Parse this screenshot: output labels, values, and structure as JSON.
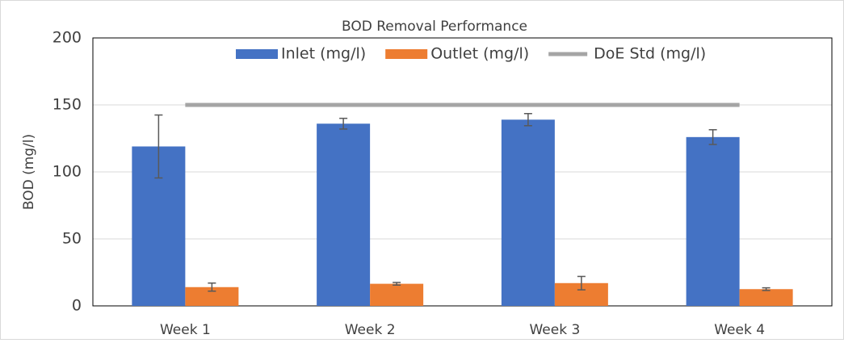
{
  "chart_data": {
    "type": "bar",
    "title": "BOD Removal Performance",
    "ylabel": "BOD (mg/l)",
    "categories": [
      "Week 1",
      "Week 2",
      "Week 3",
      "Week 4"
    ],
    "series": [
      {
        "name": "Inlet (mg/l)",
        "type": "bar",
        "color": "#4472c4",
        "values": [
          119,
          136,
          139,
          126
        ],
        "errors": [
          23.5,
          4,
          4.5,
          5.5
        ]
      },
      {
        "name": "Outlet (mg/l)",
        "type": "bar",
        "color": "#ed7d31",
        "values": [
          14,
          16.5,
          17,
          12.5
        ],
        "errors": [
          3,
          1,
          5,
          1
        ]
      },
      {
        "name": "DoE Std (mg/l)",
        "type": "line",
        "color": "#a5a5a5",
        "values": [
          150,
          150,
          150,
          150
        ]
      }
    ],
    "ylim": [
      0,
      200
    ],
    "yticks": [
      0,
      50,
      100,
      150,
      200
    ],
    "grid": true,
    "legend": "top"
  }
}
